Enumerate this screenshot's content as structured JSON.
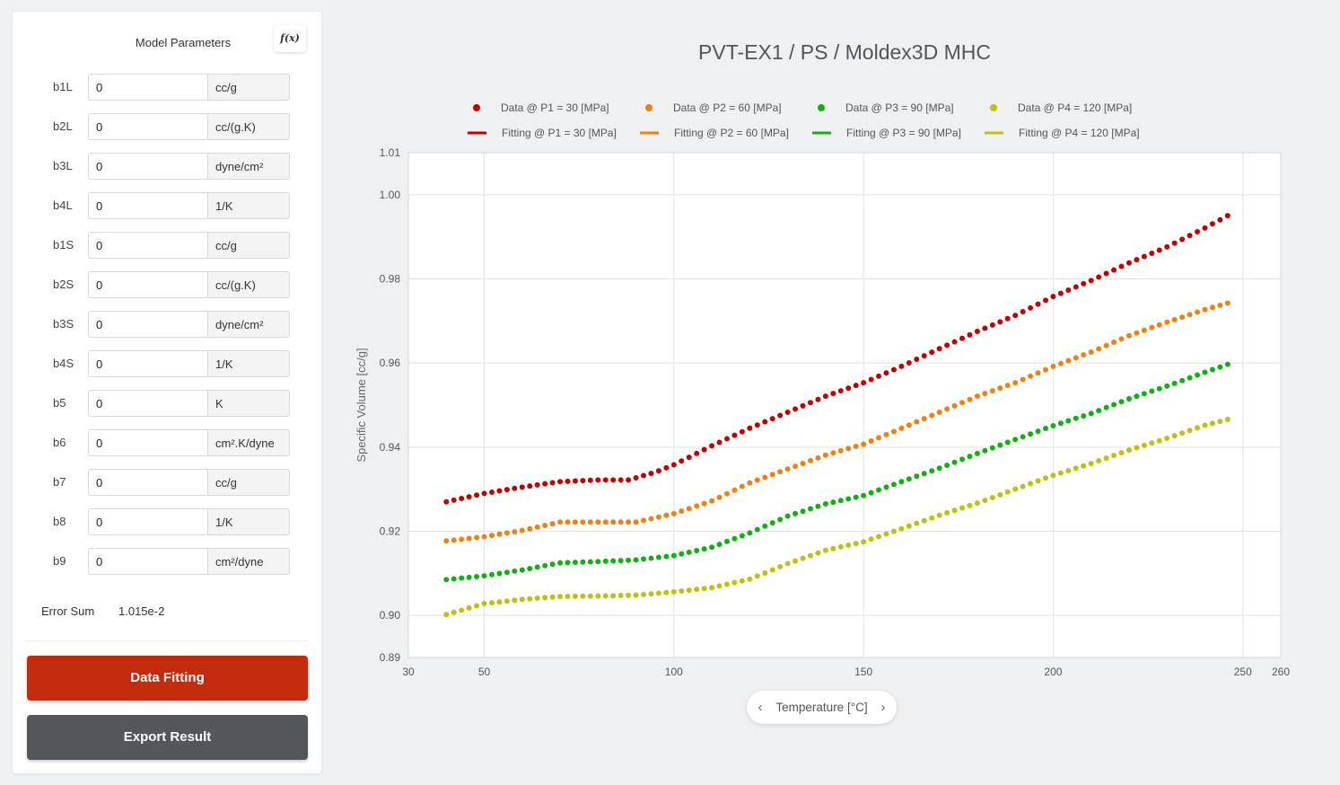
{
  "panel": {
    "title": "Model Parameters",
    "fx_label": "f(x)",
    "params": [
      {
        "label": "b1L",
        "value": "0",
        "unit": "cc/g"
      },
      {
        "label": "b2L",
        "value": "0",
        "unit": "cc/(g.K)"
      },
      {
        "label": "b3L",
        "value": "0",
        "unit": "dyne/cm²"
      },
      {
        "label": "b4L",
        "value": "0",
        "unit": "1/K"
      },
      {
        "label": "b1S",
        "value": "0",
        "unit": "cc/g"
      },
      {
        "label": "b2S",
        "value": "0",
        "unit": "cc/(g.K)"
      },
      {
        "label": "b3S",
        "value": "0",
        "unit": "dyne/cm²"
      },
      {
        "label": "b4S",
        "value": "0",
        "unit": "1/K"
      },
      {
        "label": "b5",
        "value": "0",
        "unit": "K"
      },
      {
        "label": "b6",
        "value": "0",
        "unit": "cm².K/dyne"
      },
      {
        "label": "b7",
        "value": "0",
        "unit": "cc/g"
      },
      {
        "label": "b8",
        "value": "0",
        "unit": "1/K"
      },
      {
        "label": "b9",
        "value": "0",
        "unit": "cm²/dyne"
      }
    ],
    "error_sum_label": "Error Sum",
    "error_sum_value": "1.015e-2",
    "fit_button": "Data Fitting",
    "export_button": "Export Result"
  },
  "x_axis_nav": {
    "title": "Temperature [°C]",
    "prev_icon": "chevron-left-icon",
    "next_icon": "chevron-right-icon"
  },
  "chart_data": {
    "type": "scatter",
    "title": "PVT-EX1 / PS / Moldex3D MHC",
    "xlabel": "Temperature [°C]",
    "ylabel": "Specific Volume [cc/g]",
    "xlim": [
      30,
      260
    ],
    "ylim": [
      0.89,
      1.01
    ],
    "x_ticks": [
      30,
      50,
      100,
      150,
      200,
      250,
      260
    ],
    "y_ticks": [
      0.89,
      0.9,
      0.92,
      0.94,
      0.96,
      0.98,
      1.0,
      1.01
    ],
    "grid": true,
    "legend_position": "top",
    "legend": [
      "Data @ P1 = 30 [MPa]",
      "Data @ P2 = 60 [MPa]",
      "Data @ P3 = 90 [MPa]",
      "Data @ P4 = 120 [MPa]",
      "Fitting @ P1 = 30 [MPa]",
      "Fitting @ P2 = 60 [MPa]",
      "Fitting @ P3 = 90 [MPa]",
      "Fitting @ P4 = 120 [MPa]"
    ],
    "series": [
      {
        "name": "Data @ P1 = 30 [MPa]",
        "color": "#c00000",
        "points": [
          [
            40,
            0.927
          ],
          [
            50,
            0.929
          ],
          [
            60,
            0.9305
          ],
          [
            70,
            0.9318
          ],
          [
            80,
            0.9322
          ],
          [
            88,
            0.9322
          ],
          [
            95,
            0.934
          ],
          [
            100,
            0.9358
          ],
          [
            110,
            0.9403
          ],
          [
            120,
            0.9445
          ],
          [
            130,
            0.9483
          ],
          [
            140,
            0.9521
          ],
          [
            150,
            0.9553
          ],
          [
            160,
            0.9592
          ],
          [
            170,
            0.9634
          ],
          [
            180,
            0.9675
          ],
          [
            190,
            0.9713
          ],
          [
            200,
            0.9758
          ],
          [
            210,
            0.9796
          ],
          [
            220,
            0.9838
          ],
          [
            230,
            0.9876
          ],
          [
            240,
            0.9921
          ],
          [
            247,
            0.9955
          ]
        ]
      },
      {
        "name": "Data @ P2 = 60 [MPa]",
        "color": "#f08010",
        "points": [
          [
            40,
            0.9177
          ],
          [
            50,
            0.9187
          ],
          [
            60,
            0.9202
          ],
          [
            70,
            0.9222
          ],
          [
            80,
            0.9222
          ],
          [
            90,
            0.9222
          ],
          [
            100,
            0.9242
          ],
          [
            110,
            0.9272
          ],
          [
            120,
            0.9315
          ],
          [
            130,
            0.9348
          ],
          [
            140,
            0.9381
          ],
          [
            150,
            0.9407
          ],
          [
            160,
            0.9445
          ],
          [
            170,
            0.9483
          ],
          [
            180,
            0.9521
          ],
          [
            190,
            0.9553
          ],
          [
            200,
            0.9592
          ],
          [
            210,
            0.9626
          ],
          [
            220,
            0.9665
          ],
          [
            230,
            0.9697
          ],
          [
            240,
            0.9727
          ],
          [
            247,
            0.9745
          ]
        ]
      },
      {
        "name": "Data @ P3 = 90 [MPa]",
        "color": "#10b010",
        "points": [
          [
            40,
            0.9085
          ],
          [
            50,
            0.9094
          ],
          [
            60,
            0.9108
          ],
          [
            70,
            0.9125
          ],
          [
            80,
            0.9128
          ],
          [
            90,
            0.9132
          ],
          [
            100,
            0.9142
          ],
          [
            110,
            0.9162
          ],
          [
            120,
            0.9196
          ],
          [
            130,
            0.9236
          ],
          [
            140,
            0.9265
          ],
          [
            150,
            0.9285
          ],
          [
            160,
            0.9318
          ],
          [
            170,
            0.935
          ],
          [
            180,
            0.9385
          ],
          [
            190,
            0.9418
          ],
          [
            200,
            0.9451
          ],
          [
            210,
            0.948
          ],
          [
            220,
            0.9515
          ],
          [
            230,
            0.9545
          ],
          [
            240,
            0.9578
          ],
          [
            247,
            0.96
          ]
        ]
      },
      {
        "name": "Data @ P4 = 120 [MPa]",
        "color": "#c0c010",
        "points": [
          [
            40,
            0.9002
          ],
          [
            50,
            0.9028
          ],
          [
            60,
            0.9038
          ],
          [
            70,
            0.9045
          ],
          [
            80,
            0.9046
          ],
          [
            90,
            0.9048
          ],
          [
            100,
            0.9056
          ],
          [
            110,
            0.9066
          ],
          [
            120,
            0.9086
          ],
          [
            130,
            0.9123
          ],
          [
            140,
            0.9155
          ],
          [
            150,
            0.9175
          ],
          [
            160,
            0.9206
          ],
          [
            170,
            0.9238
          ],
          [
            180,
            0.9267
          ],
          [
            190,
            0.93
          ],
          [
            200,
            0.9333
          ],
          [
            210,
            0.9361
          ],
          [
            220,
            0.9393
          ],
          [
            230,
            0.9421
          ],
          [
            240,
            0.9452
          ],
          [
            247,
            0.9468
          ]
        ]
      }
    ]
  }
}
